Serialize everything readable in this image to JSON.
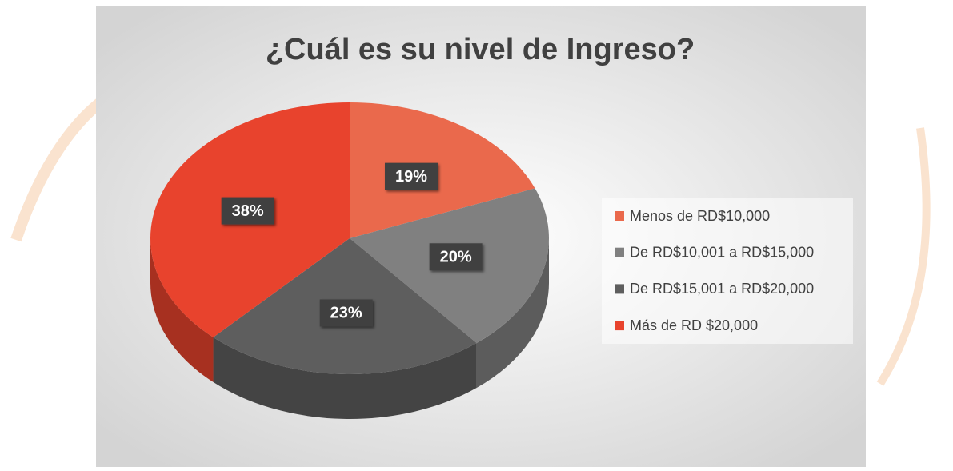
{
  "chart_data": {
    "type": "pie",
    "title": "¿Cuál es su nivel de Ingreso?",
    "categories": [
      "Menos de RD$10,000",
      "De RD$10,001 a RD$15,000",
      "De RD$15,001 a RD$20,000",
      "Más de RD $20,000"
    ],
    "values": [
      19,
      20,
      23,
      38
    ],
    "value_labels": [
      "19%",
      "20%",
      "23%",
      "38%"
    ],
    "colors": [
      "#ea694c",
      "#808080",
      "#5e5e5e",
      "#e8432d"
    ],
    "legend": "right"
  }
}
